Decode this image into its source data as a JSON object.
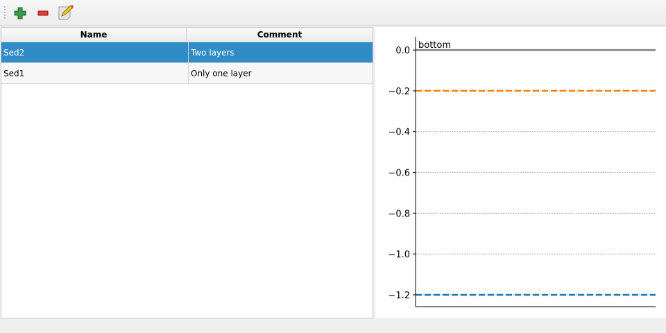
{
  "toolbar": {
    "icons": [
      "add-icon",
      "remove-icon",
      "edit-icon"
    ]
  },
  "table": {
    "headers": [
      "Name",
      "Comment"
    ],
    "rows": [
      {
        "name": "Sed2",
        "comment": "Two layers",
        "selected": true
      },
      {
        "name": "Sed1",
        "comment": "Only one layer",
        "selected": false
      }
    ]
  },
  "chart_data": {
    "type": "line",
    "ylim": [
      0.065,
      -1.258
    ],
    "y_ticks": [
      "0.0",
      "−0.2",
      "−0.4",
      "−0.6",
      "−0.8",
      "−1.0",
      "−1.2"
    ],
    "y_tick_values": [
      0,
      -0.2,
      -0.4,
      -0.6,
      -0.8,
      -1.0,
      -1.2
    ],
    "grid": "horizontal dotted",
    "annotation": "bottom",
    "series": [
      {
        "value": 0.0,
        "style": "solid",
        "color": "#808080"
      },
      {
        "value": -0.2,
        "style": "dashed",
        "color": "#ff7f0e"
      },
      {
        "value": -1.2,
        "style": "dashed",
        "color": "#1f77b4"
      }
    ]
  }
}
